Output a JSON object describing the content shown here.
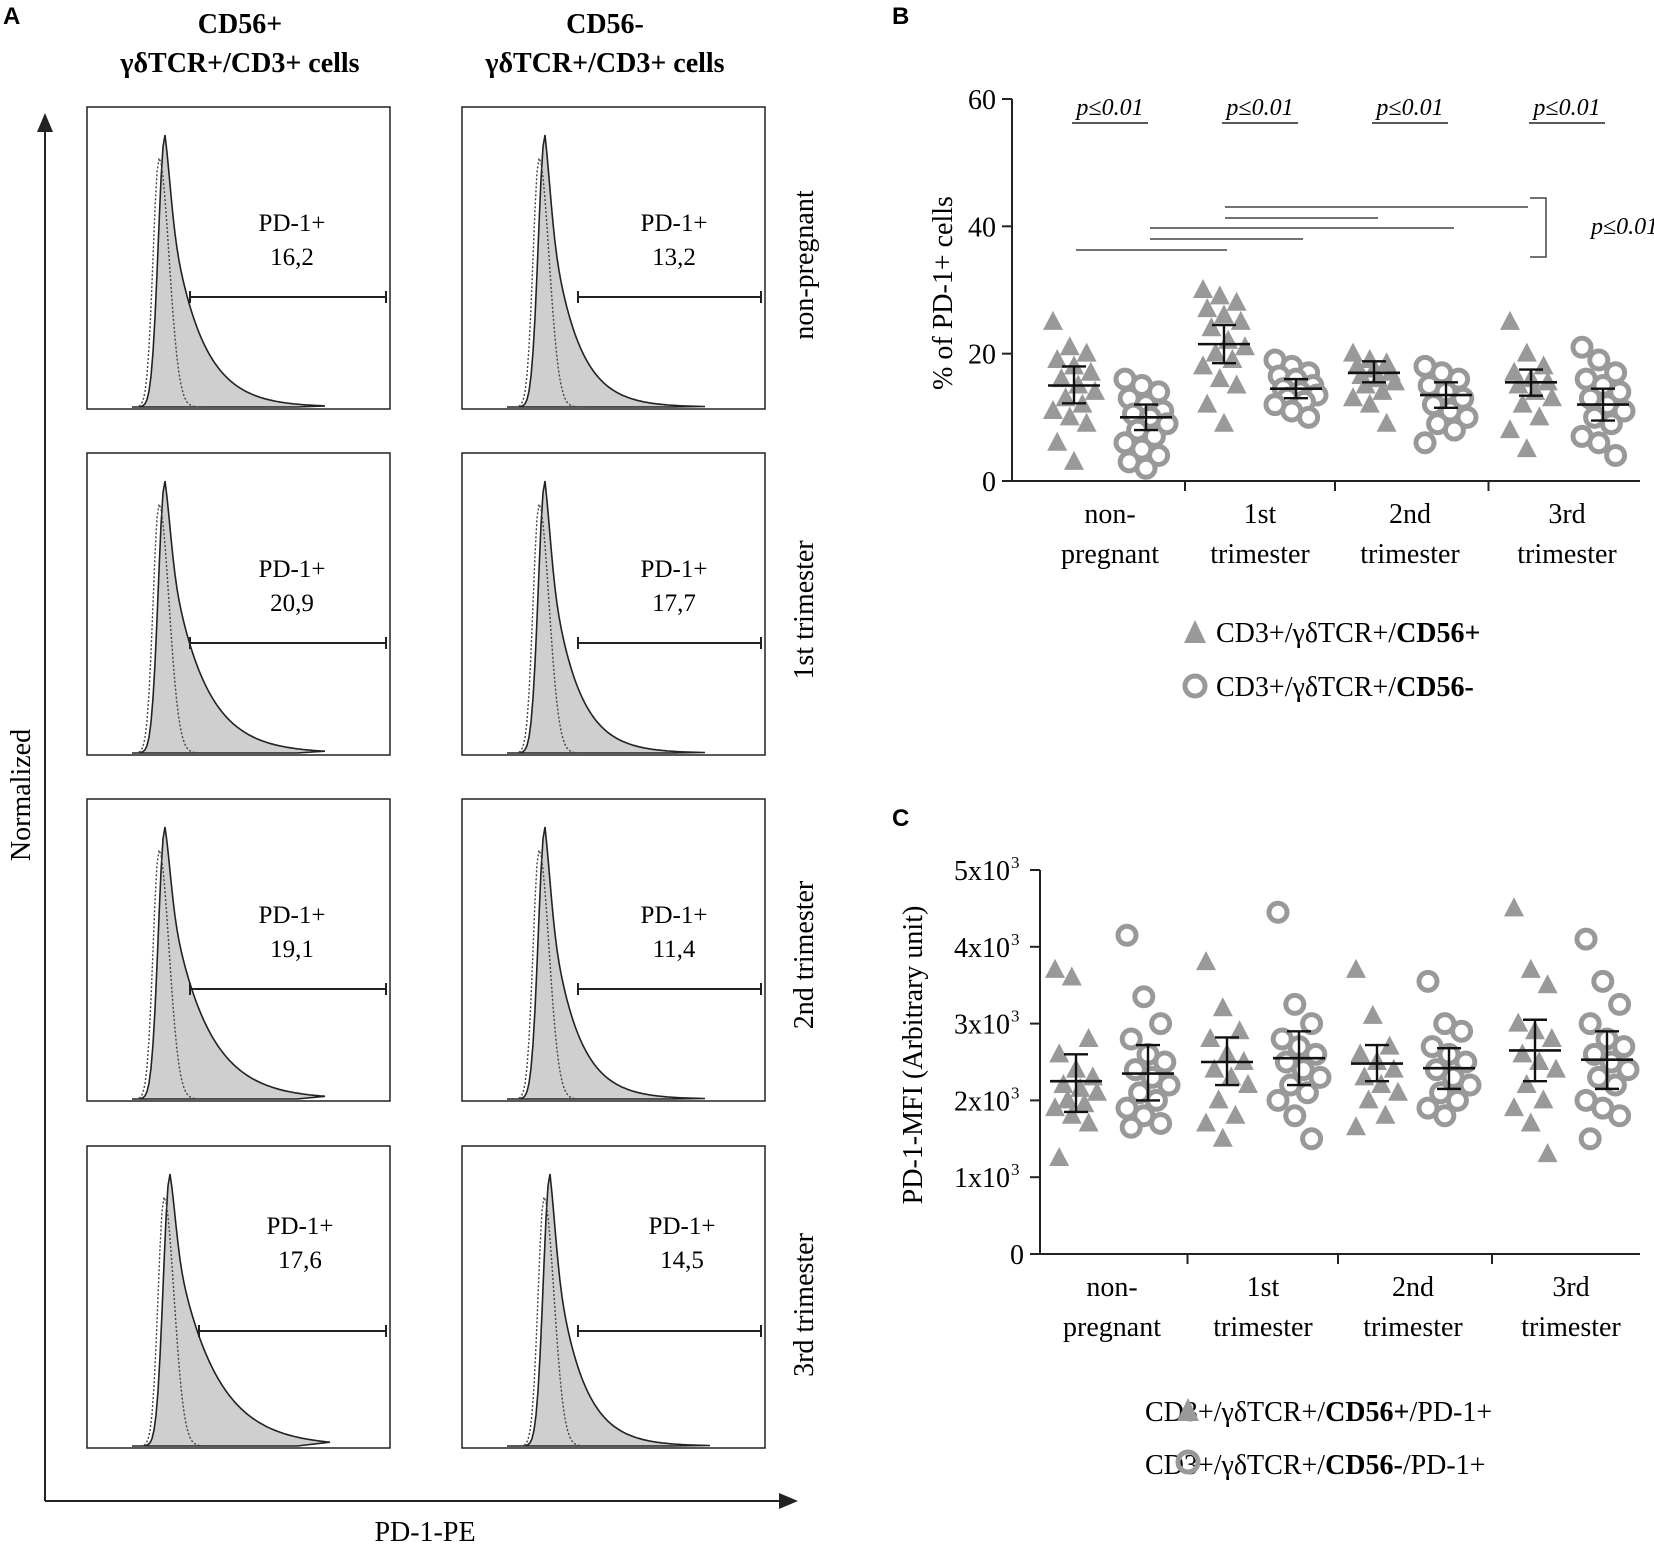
{
  "panel_labels": {
    "a": "A",
    "b": "B",
    "c": "C"
  },
  "panel_a": {
    "col_headers": [
      {
        "line1": "CD56+",
        "line2": "γδTCR+/CD3+ cells"
      },
      {
        "line1": "CD56-",
        "line2": "γδTCR+/CD3+ cells"
      }
    ],
    "row_labels": [
      "non-pregnant",
      "1st trimester",
      "2nd trimester",
      "3rd trimester"
    ],
    "y_axis_label": "Normalized",
    "x_axis_label": "PD-1-PE",
    "gate_label": "PD-1+",
    "values": [
      [
        "16,2",
        "13,2"
      ],
      [
        "20,9",
        "17,7"
      ],
      [
        "19,1",
        "11,4"
      ],
      [
        "17,6",
        "14,5"
      ]
    ]
  },
  "chart_data": [
    {
      "type": "scatter",
      "panel": "B",
      "ylabel": "% of PD-1+ cells",
      "ylim": [
        0,
        60
      ],
      "yticks": [
        "0",
        "20",
        "40",
        "60"
      ],
      "categories": [
        {
          "line1": "non-",
          "line2": "pregnant"
        },
        {
          "line1": "1st",
          "line2": "trimester"
        },
        {
          "line1": "2nd",
          "line2": "trimester"
        },
        {
          "line1": "3rd",
          "line2": "trimester"
        }
      ],
      "significance": [
        "p≤0.01",
        "p≤0.01",
        "p≤0.01",
        "p≤0.01"
      ],
      "bracket_label": "p≤0.01",
      "legend": [
        {
          "marker": "triangle",
          "pre": "CD3+/γδTCR+/",
          "bold": "CD56+",
          "post": ""
        },
        {
          "marker": "circle",
          "pre": "CD3+/γδTCR+/",
          "bold": "CD56-",
          "post": ""
        }
      ],
      "series": [
        {
          "name": "CD3+/γδTCR+/CD56+",
          "marker": "triangle",
          "mean": [
            15,
            21.5,
            17,
            15.5
          ],
          "err_low": [
            12.2,
            18.5,
            15.5,
            13.4
          ],
          "err_high": [
            18,
            24.5,
            18.8,
            17.5
          ],
          "points": [
            [
              25,
              21,
              20,
              19,
              18,
              17,
              16,
              15,
              14,
              13,
              12,
              11,
              10,
              9,
              6,
              3
            ],
            [
              30,
              29,
              28,
              27,
              26,
              25,
              24,
              22,
              21,
              20,
              19,
              18,
              16,
              15,
              12,
              9
            ],
            [
              20,
              19,
              18.5,
              18,
              17.5,
              17,
              16.5,
              16,
              15.5,
              15,
              14,
              13,
              12,
              9
            ],
            [
              25,
              20,
              18,
              17,
              16,
              15.5,
              15,
              14,
              13,
              12,
              10,
              8,
              5
            ]
          ]
        },
        {
          "name": "CD3+/γδTCR+/CD56-",
          "marker": "circle",
          "mean": [
            10,
            14.5,
            13.5,
            12
          ],
          "err_low": [
            8,
            13,
            11.5,
            9.5
          ],
          "err_high": [
            12,
            16,
            15.5,
            14.5
          ],
          "points": [
            [
              16,
              15,
              14,
              13,
              12,
              11,
              10.5,
              10,
              9,
              8,
              7,
              6,
              5,
              4,
              3,
              2
            ],
            [
              19,
              18,
              17,
              16.5,
              16,
              15,
              14.5,
              14,
              13.5,
              13,
              12.5,
              12,
              11,
              10
            ],
            [
              18,
              17,
              16,
              15,
              14,
              13,
              12,
              11,
              10,
              9,
              8,
              6
            ],
            [
              21,
              19,
              17,
              16,
              15,
              14,
              13,
              12,
              11,
              10,
              9,
              7,
              6,
              4
            ]
          ]
        }
      ]
    },
    {
      "type": "scatter",
      "panel": "C",
      "ylabel": "PD-1-MFI (Arbitrary unit)",
      "ylim": [
        0,
        5000
      ],
      "yticks": [
        "0",
        "1x10",
        "2x10",
        "3x10",
        "4x10",
        "5x10"
      ],
      "ytick_exp": "3",
      "categories": [
        {
          "line1": "non-",
          "line2": "pregnant"
        },
        {
          "line1": "1st",
          "line2": "trimester"
        },
        {
          "line1": "2nd",
          "line2": "trimester"
        },
        {
          "line1": "3rd",
          "line2": "trimester"
        }
      ],
      "legend": [
        {
          "marker": "triangle",
          "pre": "CD3+/γδTCR+/",
          "bold": "CD56+",
          "post": "/PD-1+"
        },
        {
          "marker": "circle",
          "pre": "CD3+/γδTCR+/",
          "bold": "CD56-",
          "post": "/PD-1+"
        }
      ],
      "series": [
        {
          "name": "CD3+/γδTCR+/CD56+/PD-1+",
          "marker": "triangle",
          "mean": [
            2250,
            2500,
            2480,
            2650
          ],
          "err_low": [
            1850,
            2200,
            2250,
            2250
          ],
          "err_high": [
            2600,
            2820,
            2720,
            3050
          ],
          "points": [
            [
              3700,
              3600,
              2800,
              2600,
              2400,
              2300,
              2200,
              2150,
              2100,
              2000,
              1950,
              1900,
              1800,
              1700,
              1250
            ],
            [
              3800,
              3200,
              2900,
              2800,
              2600,
              2500,
              2400,
              2300,
              2200,
              2000,
              1800,
              1700,
              1500
            ],
            [
              3700,
              3100,
              2700,
              2600,
              2500,
              2400,
              2300,
              2200,
              2100,
              2000,
              1800,
              1650
            ],
            [
              4500,
              3700,
              3500,
              3000,
              2900,
              2800,
              2600,
              2500,
              2400,
              2200,
              2000,
              1900,
              1700,
              1300
            ]
          ]
        },
        {
          "name": "CD3+/γδTCR+/CD56-/PD-1+",
          "marker": "circle",
          "mean": [
            2350,
            2550,
            2420,
            2530
          ],
          "err_low": [
            2000,
            2200,
            2150,
            2150
          ],
          "err_high": [
            2720,
            2900,
            2680,
            2900
          ],
          "points": [
            [
              4150,
              3350,
              3000,
              2800,
              2600,
              2500,
              2400,
              2300,
              2200,
              2100,
              2000,
              1900,
              1800,
              1700,
              1650
            ],
            [
              4450,
              3250,
              3000,
              2800,
              2700,
              2600,
              2500,
              2400,
              2300,
              2200,
              2100,
              2000,
              1800,
              1500
            ],
            [
              3550,
              3000,
              2900,
              2700,
              2600,
              2500,
              2400,
              2300,
              2200,
              2100,
              2000,
              1900,
              1800
            ],
            [
              4100,
              3550,
              3250,
              3000,
              2800,
              2700,
              2600,
              2500,
              2400,
              2300,
              2200,
              2000,
              1900,
              1800,
              1500
            ]
          ]
        }
      ]
    }
  ]
}
